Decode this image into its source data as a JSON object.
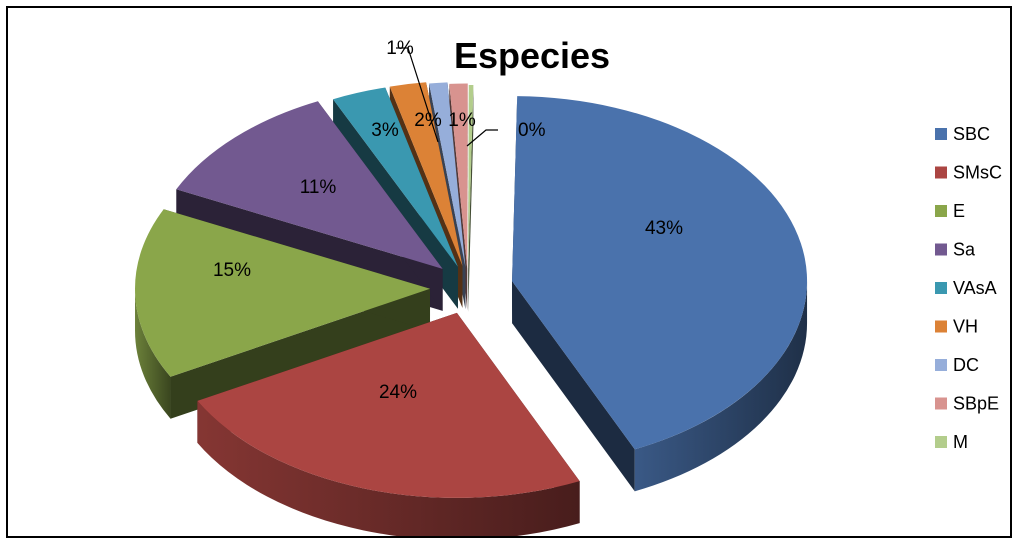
{
  "chart_data": {
    "type": "pie",
    "style": "3d-exploded",
    "title": "Especies",
    "categories": [
      "SBC",
      "SMsC",
      "E",
      "Sa",
      "VAsA",
      "VH",
      "DC",
      "SBpE",
      "M"
    ],
    "values": [
      43,
      24,
      15,
      11,
      3,
      2,
      1,
      1,
      0
    ],
    "data_labels": [
      "43%",
      "24%",
      "15%",
      "11%",
      "3%",
      "2%",
      "1%",
      "1%",
      "0%"
    ],
    "colors": [
      "#4A72AC",
      "#AB4542",
      "#8AA64A",
      "#725990",
      "#3A98B0",
      "#DC8236",
      "#96AEDA",
      "#D8938F",
      "#B3CD8C"
    ],
    "legend_position": "right"
  }
}
